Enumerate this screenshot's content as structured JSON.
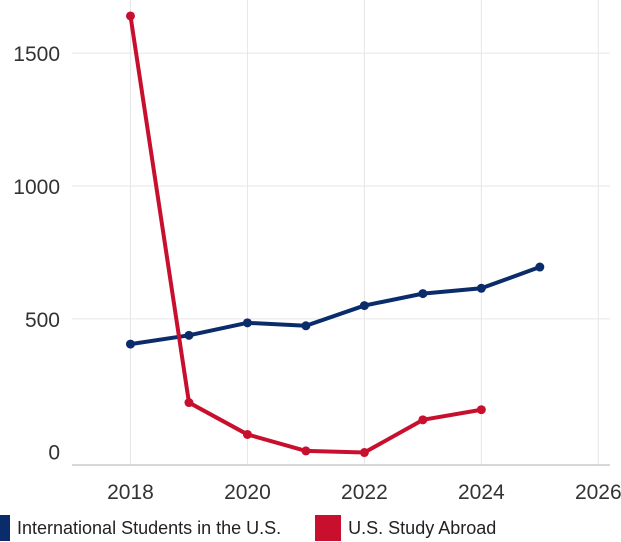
{
  "chart_data": {
    "type": "line",
    "title": "",
    "xlabel": "",
    "ylabel": "",
    "xlim": [
      2017,
      2026.2
    ],
    "ylim": [
      -50,
      1700
    ],
    "x_ticks": [
      2018,
      2020,
      2022,
      2024,
      2026
    ],
    "y_ticks": [
      0,
      500,
      1000,
      1500
    ],
    "grid": true,
    "legend_position": "bottom-left",
    "series": [
      {
        "name": "International Students in the U.S.",
        "color": "#0b2c6b",
        "x": [
          2018,
          2019,
          2020,
          2021,
          2022,
          2023,
          2024,
          2025
        ],
        "values": [
          405,
          438,
          485,
          474,
          550,
          595,
          615,
          695
        ]
      },
      {
        "name": "U.S. Study Abroad",
        "color": "#c8102e",
        "x": [
          2018,
          2019,
          2020,
          2021,
          2022,
          2023,
          2024
        ],
        "values": [
          1640,
          185,
          65,
          3,
          -3,
          120,
          158
        ]
      }
    ]
  }
}
